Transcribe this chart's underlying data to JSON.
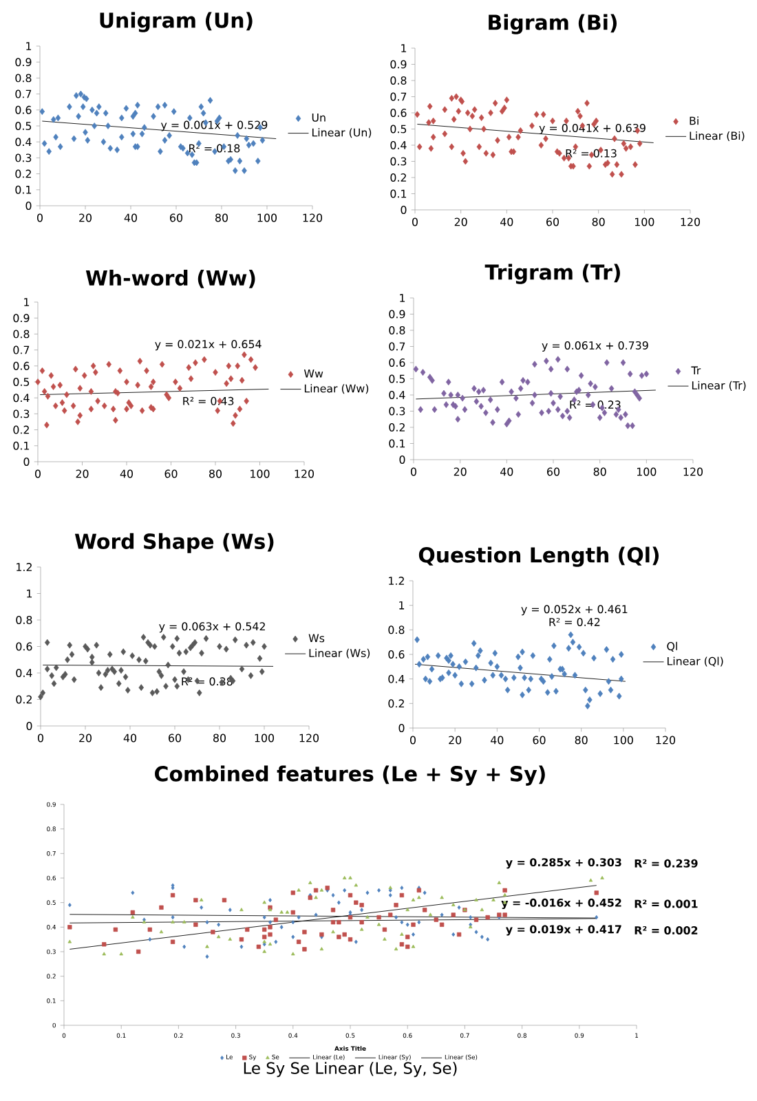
{
  "chart_data": [
    {
      "type": "scatter",
      "title": "Unigram (Un)",
      "xlim": [
        0,
        120
      ],
      "ylim": [
        0,
        1
      ],
      "xticks": [
        0,
        20,
        40,
        60,
        80,
        100,
        120
      ],
      "yticks": [
        0,
        0.1,
        0.2,
        0.3,
        0.4,
        0.5,
        0.6,
        0.7,
        0.8,
        0.9,
        1
      ],
      "legend": "right",
      "series": [
        {
          "name": "Un",
          "color": "#4f81bd",
          "marker": "diamond",
          "x": [
            1,
            2,
            4,
            6,
            7,
            8,
            9,
            13,
            15,
            16,
            17,
            18,
            19,
            19.5,
            20,
            20.5,
            21,
            23,
            24,
            25,
            26,
            28,
            29,
            30,
            31,
            34,
            36,
            36,
            38,
            41,
            41,
            42,
            42,
            43,
            43,
            45,
            46,
            50,
            52,
            53,
            55,
            55,
            57,
            59,
            62,
            63,
            65,
            66,
            67,
            68,
            69,
            70,
            71,
            72,
            73,
            75,
            77,
            78,
            79,
            81,
            83,
            84,
            86,
            87,
            88,
            90,
            91,
            92,
            94,
            96,
            97,
            98
          ],
          "values": [
            0.59,
            0.39,
            0.34,
            0.54,
            0.43,
            0.55,
            0.37,
            0.62,
            0.42,
            0.69,
            0.56,
            0.7,
            0.62,
            0.68,
            0.46,
            0.67,
            0.41,
            0.6,
            0.5,
            0.58,
            0.62,
            0.4,
            0.58,
            0.5,
            0.36,
            0.35,
            0.55,
            0.43,
            0.61,
            0.56,
            0.45,
            0.58,
            0.37,
            0.63,
            0.37,
            0.45,
            0.49,
            0.56,
            0.62,
            0.34,
            0.63,
            0.41,
            0.44,
            0.59,
            0.37,
            0.36,
            0.33,
            0.55,
            0.32,
            0.27,
            0.27,
            0.39,
            0.62,
            0.58,
            0.52,
            0.66,
            0.34,
            0.53,
            0.55,
            0.37,
            0.28,
            0.29,
            0.22,
            0.44,
            0.28,
            0.22,
            0.42,
            0.38,
            0.39,
            0.28,
            0.49,
            0.41
          ]
        },
        {
          "name": "Linear (Un)",
          "type": "line",
          "color": "#000000",
          "x": [
            1,
            104
          ],
          "values": [
            0.53,
            0.42
          ]
        }
      ],
      "annotations": [
        "y = 0.001x + 0.529",
        "R² = 0.18"
      ]
    },
    {
      "type": "scatter",
      "title": "Bigram (Bi)",
      "xlim": [
        0,
        120
      ],
      "ylim": [
        0,
        1
      ],
      "xticks": [
        0,
        20,
        40,
        60,
        80,
        100,
        120
      ],
      "yticks": [
        0,
        0.1,
        0.2,
        0.3,
        0.4,
        0.5,
        0.6,
        0.7,
        0.8,
        0.9,
        1
      ],
      "legend": "right",
      "series": [
        {
          "name": "Bi",
          "color": "#c0504d",
          "marker": "diamond",
          "x": [
            1,
            2,
            6,
            6.5,
            7,
            8,
            8,
            13,
            13,
            16,
            16,
            17,
            18,
            19,
            20,
            20.5,
            21,
            22,
            23,
            24,
            25,
            26,
            28,
            29,
            30,
            31,
            33,
            34,
            35,
            36,
            38,
            39,
            40,
            41,
            42,
            43,
            45,
            46,
            51,
            53,
            55,
            56,
            57,
            60,
            62,
            63,
            65,
            66,
            67,
            68,
            69,
            70,
            71,
            72,
            73,
            75,
            76,
            77,
            78,
            79,
            81,
            83,
            84,
            86,
            87,
            88,
            90,
            91,
            92,
            94,
            96,
            97,
            98
          ],
          "values": [
            0.59,
            0.39,
            0.54,
            0.64,
            0.38,
            0.45,
            0.55,
            0.62,
            0.47,
            0.69,
            0.39,
            0.56,
            0.7,
            0.61,
            0.68,
            0.67,
            0.35,
            0.3,
            0.6,
            0.5,
            0.58,
            0.62,
            0.39,
            0.57,
            0.5,
            0.35,
            0.6,
            0.34,
            0.66,
            0.43,
            0.61,
            0.63,
            0.68,
            0.45,
            0.36,
            0.36,
            0.45,
            0.49,
            0.52,
            0.59,
            0.4,
            0.59,
            0.44,
            0.55,
            0.36,
            0.35,
            0.32,
            0.55,
            0.32,
            0.27,
            0.27,
            0.39,
            0.61,
            0.58,
            0.52,
            0.66,
            0.27,
            0.34,
            0.53,
            0.55,
            0.37,
            0.28,
            0.29,
            0.22,
            0.44,
            0.28,
            0.22,
            0.41,
            0.38,
            0.39,
            0.28,
            0.49,
            0.41
          ]
        },
        {
          "name": "Linear (Bi)",
          "type": "line",
          "color": "#000000",
          "x": [
            1,
            104
          ],
          "values": [
            0.53,
            0.415
          ]
        }
      ],
      "annotations": [
        "y = 0.041x + 0.639",
        "R² = 0.13"
      ]
    },
    {
      "type": "scatter",
      "title": "Wh-word (Ww)",
      "xlim": [
        0,
        120
      ],
      "ylim": [
        0,
        1
      ],
      "xticks": [
        0,
        20,
        40,
        60,
        80,
        100,
        120
      ],
      "yticks": [
        0,
        0.1,
        0.2,
        0.3,
        0.4,
        0.5,
        0.6,
        0.7,
        0.8,
        0.9,
        1
      ],
      "legend": "right",
      "series": [
        {
          "name": "Ww",
          "color": "#c0504d",
          "marker": "diamond",
          "x": [
            0,
            2,
            3,
            4,
            4.5,
            6,
            7,
            8,
            10,
            11,
            12,
            13,
            16,
            17,
            18,
            19,
            19,
            21,
            24,
            24,
            25,
            26,
            27,
            30,
            32,
            34,
            35,
            35,
            36,
            37,
            40,
            40,
            41,
            42,
            45,
            46,
            47,
            49,
            51,
            51,
            52,
            52,
            56,
            58,
            59,
            62,
            64,
            68,
            69,
            71,
            75,
            80,
            81,
            82,
            85,
            86,
            87,
            88,
            89,
            90,
            91,
            92,
            93,
            94,
            96,
            98
          ],
          "values": [
            0.5,
            0.57,
            0.44,
            0.23,
            0.41,
            0.54,
            0.47,
            0.35,
            0.48,
            0.37,
            0.32,
            0.42,
            0.35,
            0.58,
            0.25,
            0.46,
            0.29,
            0.54,
            0.33,
            0.44,
            0.6,
            0.56,
            0.38,
            0.35,
            0.61,
            0.33,
            0.44,
            0.26,
            0.43,
            0.57,
            0.5,
            0.33,
            0.37,
            0.35,
            0.48,
            0.63,
            0.32,
            0.57,
            0.47,
            0.34,
            0.5,
            0.33,
            0.61,
            0.42,
            0.4,
            0.5,
            0.46,
            0.59,
            0.52,
            0.62,
            0.64,
            0.56,
            0.32,
            0.38,
            0.49,
            0.6,
            0.52,
            0.24,
            0.29,
            0.6,
            0.33,
            0.51,
            0.67,
            0.38,
            0.64,
            0.59
          ]
        },
        {
          "name": "Linear (Ww)",
          "type": "line",
          "color": "#000000",
          "x": [
            1,
            104
          ],
          "values": [
            0.42,
            0.455
          ]
        }
      ],
      "annotations": [
        "y = 0.021x + 0.654",
        "R² = 0.43"
      ]
    },
    {
      "type": "scatter",
      "title": "Trigram (Tr)",
      "xlim": [
        0,
        120
      ],
      "ylim": [
        0,
        1
      ],
      "xticks": [
        0,
        20,
        40,
        60,
        80,
        100,
        120
      ],
      "yticks": [
        0,
        0.1,
        0.2,
        0.3,
        0.4,
        0.5,
        0.6,
        0.7,
        0.8,
        0.9,
        1
      ],
      "legend": "right",
      "series": [
        {
          "name": "Tr",
          "color": "#8064a2",
          "marker": "diamond",
          "x": [
            1,
            3,
            4,
            7,
            8,
            9,
            13,
            14,
            15,
            16,
            17,
            18,
            19,
            19,
            21,
            22,
            26,
            27,
            28,
            29,
            30,
            31,
            33,
            34,
            36,
            38,
            40,
            41,
            42,
            44,
            45,
            46,
            47,
            49,
            51,
            52,
            52,
            55,
            57,
            58,
            59,
            59,
            60,
            62,
            62,
            63,
            64,
            66,
            66,
            67,
            69,
            70,
            71,
            72,
            75,
            76,
            77,
            78,
            80,
            81,
            82,
            83,
            85,
            87,
            88,
            89,
            90,
            91,
            92,
            93,
            94,
            95,
            96,
            97,
            98,
            100
          ],
          "values": [
            0.56,
            0.31,
            0.54,
            0.51,
            0.49,
            0.31,
            0.41,
            0.34,
            0.48,
            0.4,
            0.34,
            0.33,
            0.25,
            0.4,
            0.38,
            0.31,
            0.44,
            0.36,
            0.42,
            0.33,
            0.43,
            0.29,
            0.37,
            0.23,
            0.31,
            0.48,
            0.22,
            0.24,
            0.42,
            0.38,
            0.28,
            0.44,
            0.49,
            0.48,
            0.35,
            0.4,
            0.59,
            0.29,
            0.61,
            0.3,
            0.56,
            0.41,
            0.35,
            0.62,
            0.31,
            0.39,
            0.27,
            0.56,
            0.3,
            0.26,
            0.37,
            0.42,
            0.43,
            0.52,
            0.4,
            0.47,
            0.34,
            0.45,
            0.26,
            0.32,
            0.29,
            0.6,
            0.44,
            0.28,
            0.31,
            0.26,
            0.6,
            0.28,
            0.21,
            0.53,
            0.21,
            0.42,
            0.4,
            0.38,
            0.52,
            0.53
          ]
        },
        {
          "name": "Linear (Tr)",
          "type": "line",
          "color": "#000000",
          "x": [
            1,
            104
          ],
          "values": [
            0.375,
            0.43
          ]
        }
      ],
      "annotations": [
        "y = 0.061x + 0.739",
        "R² = 0.23"
      ]
    },
    {
      "type": "scatter",
      "title": "Word Shape (Ws)",
      "xlim": [
        0,
        120
      ],
      "ylim": [
        0,
        1.2
      ],
      "xticks": [
        0,
        20,
        40,
        60,
        80,
        100,
        120
      ],
      "yticks": [
        0,
        0.2,
        0.4,
        0.6,
        0.8,
        1,
        1.2
      ],
      "legend": "right",
      "series": [
        {
          "name": "Ws",
          "color": "#595959",
          "marker": "diamond",
          "x": [
            0,
            1,
            3,
            3,
            5,
            6,
            7,
            10,
            11,
            12,
            13,
            14,
            15,
            20,
            21,
            23,
            23,
            25,
            26,
            27,
            29,
            30,
            31,
            32,
            33,
            35,
            36,
            37,
            38,
            39,
            41,
            44,
            45,
            46,
            47,
            48,
            49,
            50,
            51,
            52,
            53,
            54,
            55,
            56,
            57,
            59,
            60,
            61,
            61,
            62,
            64,
            65,
            66,
            67,
            68,
            69,
            70,
            71,
            72,
            74,
            80,
            81,
            83,
            85,
            86,
            87,
            90,
            92,
            94,
            95,
            98,
            99,
            100
          ],
          "values": [
            0.22,
            0.25,
            0.63,
            0.43,
            0.38,
            0.32,
            0.44,
            0.37,
            0.39,
            0.5,
            0.61,
            0.54,
            0.35,
            0.6,
            0.58,
            0.48,
            0.52,
            0.61,
            0.4,
            0.29,
            0.39,
            0.42,
            0.54,
            0.43,
            0.41,
            0.32,
            0.42,
            0.56,
            0.37,
            0.27,
            0.53,
            0.5,
            0.29,
            0.67,
            0.49,
            0.63,
            0.61,
            0.25,
            0.6,
            0.26,
            0.41,
            0.38,
            0.67,
            0.3,
            0.46,
            0.6,
            0.35,
            0.3,
            0.66,
            0.55,
            0.41,
            0.56,
            0.35,
            0.59,
            0.61,
            0.63,
            0.34,
            0.25,
            0.55,
            0.66,
            0.6,
            0.33,
            0.58,
            0.36,
            0.34,
            0.65,
            0.43,
            0.61,
            0.38,
            0.63,
            0.51,
            0.41,
            0.6
          ]
        },
        {
          "name": "Linear (Ws)",
          "type": "line",
          "color": "#000000",
          "x": [
            1,
            104
          ],
          "values": [
            0.46,
            0.45
          ]
        }
      ],
      "annotations": [
        "y = 0.063x + 0.542",
        "R² = 0.38"
      ]
    },
    {
      "type": "scatter",
      "title": "Question Length (Ql)",
      "xlim": [
        0,
        120
      ],
      "ylim": [
        0,
        1.2
      ],
      "xticks": [
        0,
        20,
        40,
        60,
        80,
        100,
        120
      ],
      "yticks": [
        0,
        0.2,
        0.4,
        0.6,
        0.8,
        1,
        1.2
      ],
      "legend": "right",
      "series": [
        {
          "name": "Ql",
          "color": "#4f81bd",
          "marker": "diamond",
          "x": [
            2,
            3,
            5,
            6,
            7,
            8,
            9,
            12,
            13,
            14,
            16,
            17,
            17,
            18,
            19,
            20,
            22,
            23,
            25,
            28,
            29,
            30,
            31,
            32,
            34,
            37,
            38,
            39,
            40,
            42,
            44,
            45,
            48,
            50,
            51,
            52,
            52,
            53,
            55,
            56,
            57,
            61,
            62,
            64,
            65,
            66,
            67,
            68,
            70,
            71,
            72,
            74,
            75,
            76,
            77,
            79,
            81,
            82,
            83,
            84,
            86,
            89,
            92,
            93,
            94,
            95,
            98,
            99,
            99
          ],
          "values": [
            0.72,
            0.52,
            0.56,
            0.4,
            0.58,
            0.38,
            0.48,
            0.59,
            0.4,
            0.41,
            0.57,
            0.55,
            0.45,
            0.59,
            0.52,
            0.43,
            0.5,
            0.36,
            0.54,
            0.36,
            0.69,
            0.49,
            0.59,
            0.63,
            0.39,
            0.53,
            0.43,
            0.61,
            0.5,
            0.43,
            0.4,
            0.31,
            0.41,
            0.58,
            0.49,
            0.62,
            0.27,
            0.41,
            0.31,
            0.4,
            0.59,
            0.4,
            0.38,
            0.29,
            0.56,
            0.42,
            0.67,
            0.3,
            0.48,
            0.48,
            0.44,
            0.65,
            0.76,
            0.7,
            0.43,
            0.66,
            0.61,
            0.31,
            0.18,
            0.23,
            0.57,
            0.28,
            0.64,
            0.38,
            0.31,
            0.56,
            0.26,
            0.6,
            0.4
          ]
        },
        {
          "name": "Linear (Ql)",
          "type": "line",
          "color": "#000000",
          "x": [
            1,
            101
          ],
          "values": [
            0.52,
            0.38
          ]
        }
      ],
      "annotations": [
        "y = 0.052x + 0.461",
        "R² = 0.42"
      ]
    },
    {
      "type": "scatter",
      "title": "Combined features (Le + Sy + Sy)",
      "xlabel": "Axis Title",
      "xlim": [
        0,
        1
      ],
      "ylim": [
        0,
        0.9
      ],
      "xticks": [
        0,
        0.1,
        0.2,
        0.3,
        0.4,
        0.5,
        0.6,
        0.7,
        0.8,
        0.9,
        1
      ],
      "yticks": [
        0,
        0.1,
        0.2,
        0.3,
        0.4,
        0.5,
        0.6,
        0.7,
        0.8,
        0.9
      ],
      "legend": "bottom",
      "series": [
        {
          "name": "Le",
          "color": "#4f81bd",
          "marker": "diamond",
          "x": [
            0.01,
            0.12,
            0.14,
            0.15,
            0.19,
            0.19,
            0.19,
            0.21,
            0.24,
            0.25,
            0.25,
            0.27,
            0.29,
            0.31,
            0.35,
            0.35,
            0.36,
            0.36,
            0.37,
            0.38,
            0.4,
            0.4,
            0.41,
            0.43,
            0.44,
            0.45,
            0.46,
            0.47,
            0.48,
            0.49,
            0.5,
            0.5,
            0.51,
            0.52,
            0.53,
            0.55,
            0.57,
            0.57,
            0.58,
            0.59,
            0.59,
            0.6,
            0.61,
            0.62,
            0.62,
            0.63,
            0.64,
            0.66,
            0.68,
            0.69,
            0.71,
            0.71,
            0.72,
            0.73,
            0.74,
            0.76,
            0.93
          ],
          "values": [
            0.49,
            0.54,
            0.43,
            0.35,
            0.44,
            0.57,
            0.56,
            0.32,
            0.48,
            0.42,
            0.28,
            0.41,
            0.47,
            0.32,
            0.33,
            0.44,
            0.51,
            0.42,
            0.34,
            0.4,
            0.36,
            0.42,
            0.44,
            0.53,
            0.45,
            0.36,
            0.55,
            0.53,
            0.5,
            0.55,
            0.46,
            0.45,
            0.34,
            0.47,
            0.54,
            0.55,
            0.55,
            0.53,
            0.44,
            0.42,
            0.56,
            0.41,
            0.37,
            0.56,
            0.42,
            0.54,
            null,
            0.45,
            0.37,
            0.48,
            0.41,
            0.44,
            0.38,
            0.36,
            0.35,
            0.44,
            0.44
          ]
        },
        {
          "name": "Sy",
          "color": "#c0504d",
          "marker": "square",
          "x": [
            0.01,
            0.07,
            0.09,
            0.12,
            0.13,
            0.15,
            0.17,
            0.19,
            0.19,
            0.23,
            0.23,
            0.26,
            0.28,
            0.31,
            0.32,
            0.34,
            0.35,
            0.35,
            0.36,
            0.36,
            0.36,
            0.37,
            0.4,
            0.4,
            0.41,
            0.42,
            0.42,
            0.43,
            0.44,
            0.45,
            0.46,
            0.47,
            0.47,
            0.48,
            0.48,
            0.49,
            0.5,
            0.5,
            0.5,
            0.51,
            0.52,
            0.52,
            0.55,
            0.56,
            0.57,
            0.58,
            0.59,
            0.59,
            0.6,
            0.6,
            0.61,
            0.62,
            0.63,
            0.65,
            0.66,
            0.68,
            0.69,
            0.7,
            0.72,
            0.74,
            0.76,
            0.77,
            0.77,
            0.93
          ],
          "values": [
            0.4,
            0.33,
            0.39,
            0.46,
            0.3,
            0.39,
            0.48,
            0.53,
            0.34,
            0.41,
            0.51,
            0.38,
            0.51,
            0.35,
            0.39,
            0.32,
            0.36,
            0.39,
            0.48,
            0.37,
            0.4,
            0.43,
            0.54,
            0.46,
            0.34,
            0.31,
            0.38,
            0.52,
            0.55,
            0.37,
            0.56,
            0.47,
            0.42,
            0.36,
            0.42,
            0.37,
            0.35,
            0.53,
            0.44,
            0.5,
            0.49,
            0.42,
            0.44,
            0.39,
            0.45,
            0.49,
            0.53,
            0.33,
            0.32,
            0.36,
            0.41,
            0.55,
            0.47,
            0.43,
            0.41,
            0.45,
            0.37,
            0.47,
            0.43,
            0.44,
            0.45,
            0.55,
            0.45,
            0.54
          ]
        },
        {
          "name": "Se",
          "color": "#9bbb59",
          "marker": "triangle",
          "x": [
            0.01,
            0.07,
            0.1,
            0.12,
            0.14,
            0.17,
            0.19,
            0.21,
            0.24,
            0.25,
            0.27,
            0.29,
            0.31,
            0.35,
            0.35,
            0.35,
            0.36,
            0.36,
            0.38,
            0.39,
            0.4,
            0.41,
            0.43,
            0.44,
            0.45,
            0.45,
            0.47,
            0.49,
            0.5,
            0.51,
            0.52,
            0.53,
            0.55,
            0.56,
            0.57,
            0.58,
            0.59,
            0.6,
            0.61,
            0.61,
            0.62,
            0.64,
            0.66,
            0.68,
            0.7,
            0.71,
            0.72,
            0.73,
            0.75,
            0.76,
            0.77,
            0.77,
            0.92,
            0.94
          ],
          "values": [
            0.34,
            0.29,
            0.29,
            0.44,
            0.42,
            0.38,
            0.42,
            0.42,
            0.51,
            0.32,
            0.36,
            0.35,
            0.47,
            0.34,
            0.3,
            0.5,
            0.33,
            0.47,
            0.46,
            0.46,
            0.29,
            0.55,
            0.58,
            0.52,
            0.55,
            0.31,
            0.38,
            0.6,
            0.6,
            0.57,
            0.39,
            0.44,
            0.41,
            0.35,
            0.56,
            0.31,
            0.37,
            0.47,
            0.51,
            0.32,
            0.52,
            0.45,
            0.52,
            0.49,
            0.47,
            0.4,
            0.51,
            0.47,
            0.51,
            0.58,
            0.5,
            0.53,
            0.59,
            0.6
          ]
        },
        {
          "name": "Linear (Le)",
          "type": "line",
          "color": "#000000",
          "x": [
            0.01,
            0.93
          ],
          "values": [
            0.452,
            0.437
          ]
        },
        {
          "name": "Linear (Sy)",
          "type": "line",
          "color": "#000000",
          "x": [
            0.01,
            0.93
          ],
          "values": [
            0.417,
            0.435
          ]
        },
        {
          "name": "Linear (Se)",
          "type": "line",
          "color": "#000000",
          "x": [
            0.01,
            0.93
          ],
          "values": [
            0.31,
            0.57
          ]
        }
      ],
      "annotations": [
        "y = 0.285x + 0.303",
        "R² = 0.239",
        "y = -0.016x + 0.452",
        "R² = 0.001",
        "y = 0.019x + 0.417",
        "R² = 0.002",
        "Le   Sy   Se    Linear (Le, Sy, Se)"
      ]
    }
  ]
}
